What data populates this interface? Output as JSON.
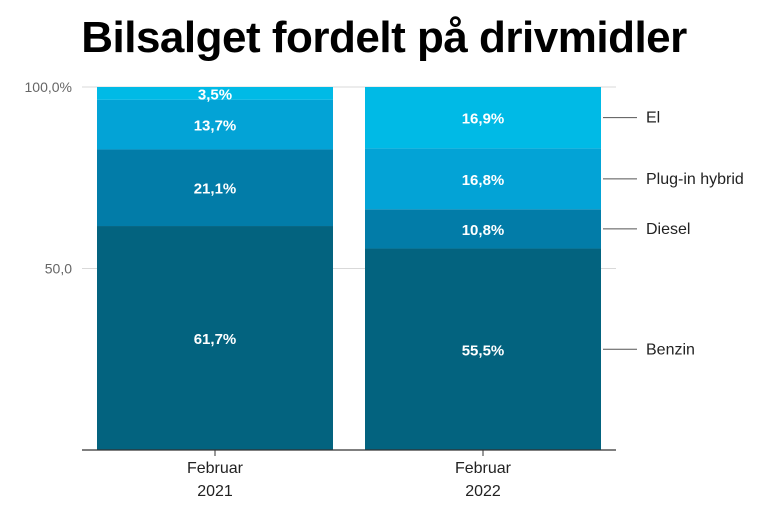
{
  "chart_data": {
    "type": "bar",
    "stacked": true,
    "title": "Bilsalget fordelt på drivmidler",
    "xlabel": "",
    "ylabel": "",
    "ylim": [
      0,
      100
    ],
    "yticks": [
      {
        "value": 100,
        "label": "100,0%"
      },
      {
        "value": 50,
        "label": "50,0"
      }
    ],
    "grid": true,
    "categories": [
      [
        "Februar",
        "2021"
      ],
      [
        "Februar",
        "2022"
      ]
    ],
    "series": [
      {
        "name": "Benzin",
        "color": "#03637f",
        "values": [
          61.7,
          55.5
        ],
        "labels": [
          "61,7%",
          "55,5%"
        ]
      },
      {
        "name": "Diesel",
        "color": "#027ca8",
        "values": [
          21.1,
          10.8
        ],
        "labels": [
          "21,1%",
          "10,8%"
        ]
      },
      {
        "name": "Plug-in hybrid",
        "color": "#03a3d6",
        "values": [
          13.7,
          16.8
        ],
        "labels": [
          "13,7%",
          "16,8%"
        ]
      },
      {
        "name": "El",
        "color": "#00bae6",
        "values": [
          3.5,
          16.9
        ],
        "labels": [
          "3,5%",
          "16,9%"
        ]
      }
    ],
    "legend_placement": "right"
  }
}
